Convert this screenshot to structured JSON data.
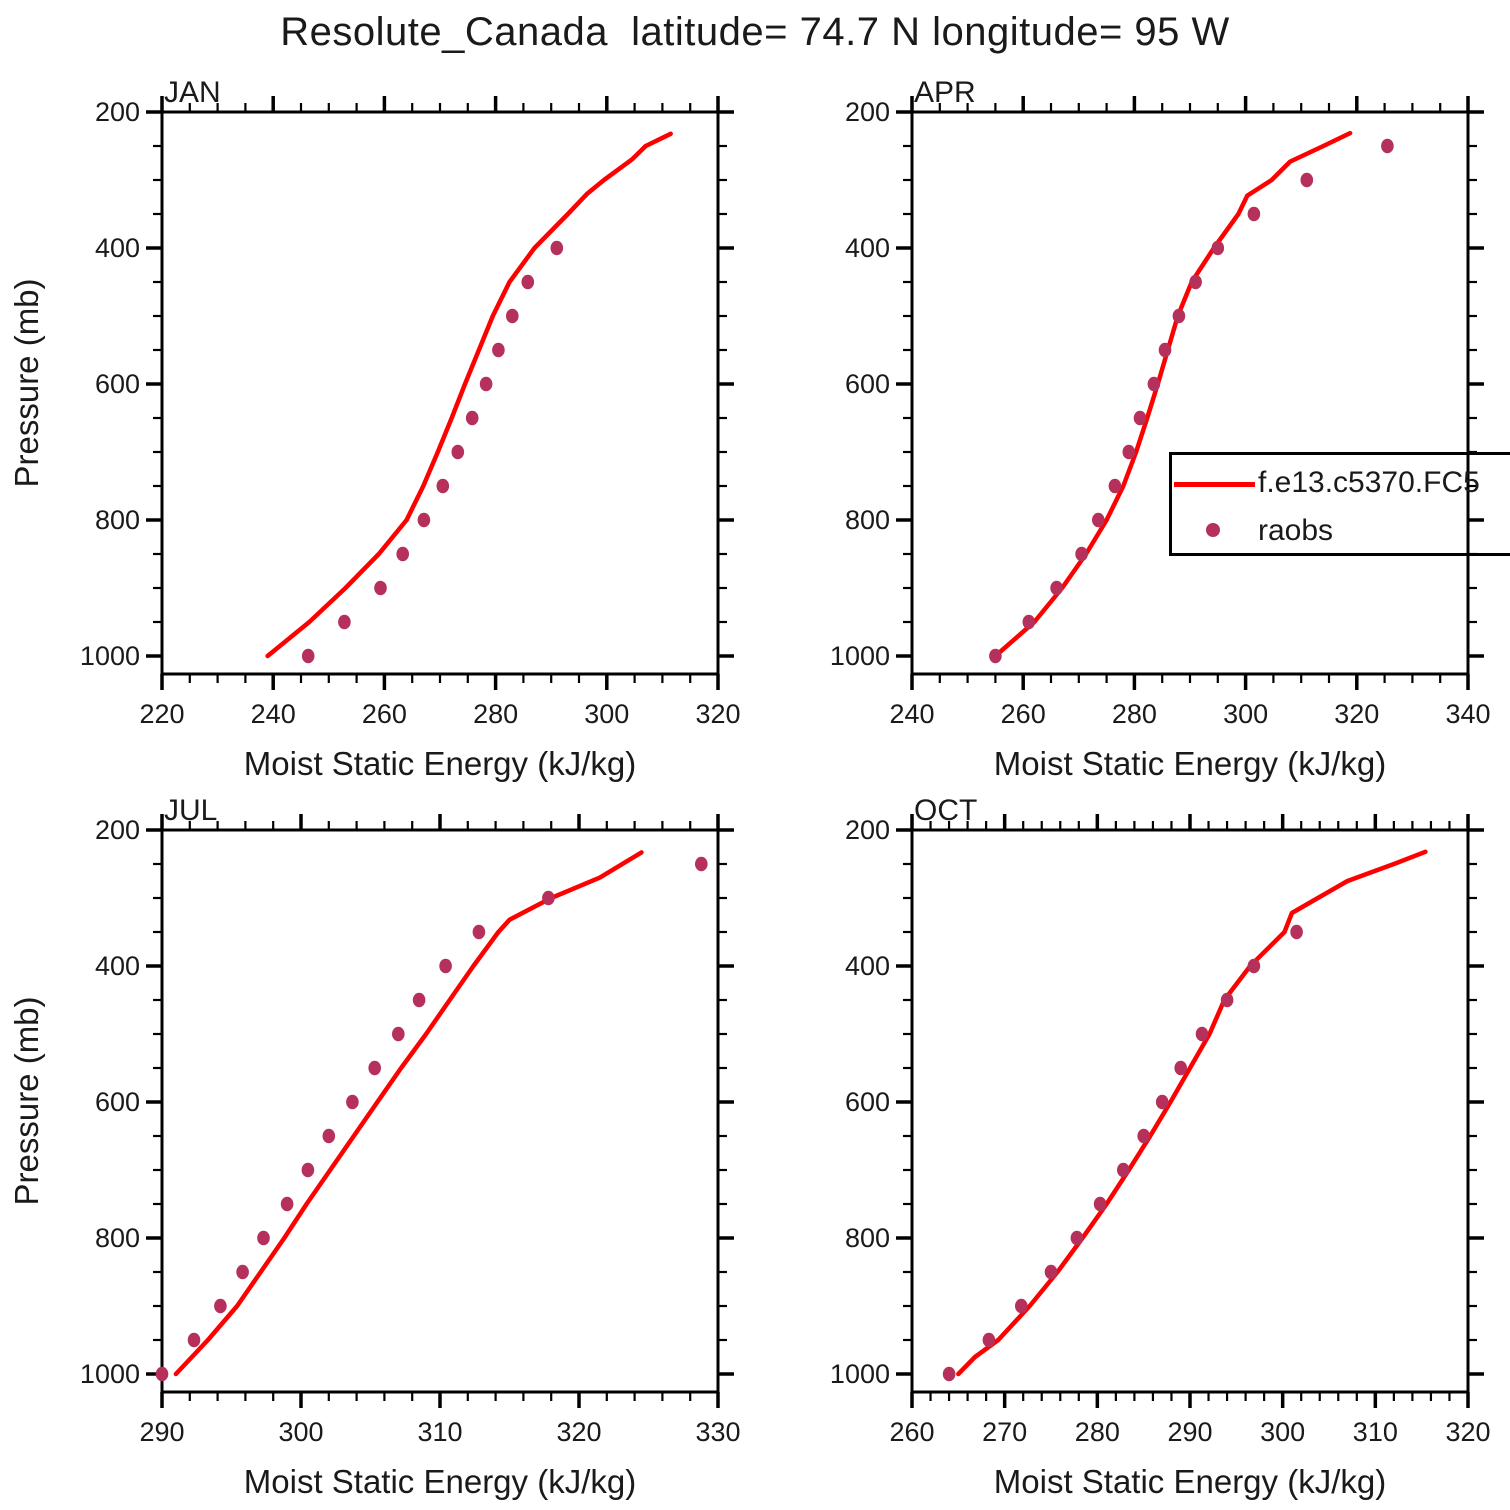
{
  "title": "Resolute_Canada  latitude= 74.7 N longitude= 95 W",
  "legend": {
    "model_label": "f.e13.c5370.FC5",
    "raobs_label": "raobs"
  },
  "colors": {
    "model_line": "#ff0000",
    "raobs_dot": "#b5305a",
    "axis": "#000000",
    "text": "#1a1a1a"
  },
  "chart_data": {
    "type": "line",
    "xlabel": "Moist Static Energy (kJ/kg)",
    "ylabel": "Pressure (mb)",
    "y_axis": {
      "min": 200,
      "max": 1000,
      "tick_major": 200,
      "tick_minor": 50,
      "inverted": true,
      "ticks": [
        200,
        400,
        600,
        800,
        1000
      ]
    },
    "series_names": [
      "f.e13.c5370.FC5",
      "raobs"
    ],
    "legend_position": "inside-top-right-of-APR-panel",
    "grid": false,
    "panels": [
      {
        "month": "JAN",
        "x_axis": {
          "min": 220,
          "max": 320,
          "tick_major": 20,
          "tick_minor": 5,
          "ticks": [
            220,
            240,
            260,
            280,
            300,
            320
          ]
        },
        "model": {
          "pressure": [
            1000,
            950,
            900,
            850,
            800,
            750,
            700,
            650,
            600,
            550,
            500,
            450,
            400,
            350,
            320,
            300,
            270,
            250,
            232
          ],
          "mse": [
            239,
            246.5,
            253,
            259,
            264,
            267,
            269.6,
            272.1,
            274.5,
            277,
            279.5,
            282.5,
            287,
            293,
            296.5,
            299.5,
            304.5,
            307,
            311.5
          ]
        },
        "raobs": {
          "pressure": [
            1000,
            950,
            900,
            850,
            800,
            750,
            700,
            650,
            600,
            550,
            500,
            450,
            400
          ],
          "mse": [
            246.3,
            252.8,
            259.3,
            263.3,
            267.1,
            270.5,
            273.2,
            275.8,
            278.3,
            280.5,
            283,
            285.8,
            291
          ]
        }
      },
      {
        "month": "APR",
        "x_axis": {
          "min": 240,
          "max": 340,
          "tick_major": 20,
          "tick_minor": 5,
          "ticks": [
            240,
            260,
            280,
            300,
            320,
            340
          ]
        },
        "model": {
          "pressure": [
            1000,
            950,
            900,
            850,
            800,
            750,
            700,
            650,
            600,
            550,
            500,
            450,
            400,
            350,
            323,
            300,
            273,
            250,
            231
          ],
          "mse": [
            255,
            262,
            267,
            271.3,
            275,
            278,
            280.3,
            282.3,
            284.2,
            286,
            287.8,
            290.3,
            294.3,
            298.7,
            300.3,
            304.7,
            308,
            314,
            318.8
          ]
        },
        "raobs": {
          "pressure": [
            1000,
            950,
            900,
            850,
            800,
            750,
            700,
            650,
            600,
            550,
            500,
            450,
            400,
            350,
            300,
            250
          ],
          "mse": [
            255,
            261,
            266,
            270.5,
            273.5,
            276.5,
            279,
            281,
            283.5,
            285.5,
            288,
            291,
            295,
            301.5,
            311,
            325.5
          ]
        }
      },
      {
        "month": "JUL",
        "x_axis": {
          "min": 290,
          "max": 330,
          "tick_major": 10,
          "tick_minor": 2,
          "ticks": [
            290,
            300,
            310,
            320,
            330
          ]
        },
        "model": {
          "pressure": [
            1000,
            950,
            900,
            850,
            800,
            750,
            700,
            650,
            600,
            550,
            500,
            450,
            400,
            350,
            332,
            300,
            270,
            233
          ],
          "mse": [
            291,
            293.3,
            295.4,
            297.1,
            298.8,
            300.4,
            302.1,
            303.8,
            305.5,
            307.2,
            309,
            310.7,
            312.4,
            314.2,
            315,
            318,
            321.5,
            324.5
          ]
        },
        "raobs": {
          "pressure": [
            1000,
            950,
            900,
            850,
            800,
            750,
            700,
            650,
            600,
            550,
            500,
            450,
            400,
            350,
            300,
            250
          ],
          "mse": [
            290,
            292.3,
            294.2,
            295.8,
            297.3,
            299,
            300.5,
            302,
            303.7,
            305.3,
            307,
            308.5,
            310.4,
            312.8,
            317.8,
            328.8
          ]
        }
      },
      {
        "month": "OCT",
        "x_axis": {
          "min": 260,
          "max": 320,
          "tick_major": 10,
          "tick_minor": 2,
          "ticks": [
            260,
            270,
            280,
            290,
            300,
            310,
            320
          ]
        },
        "model": {
          "pressure": [
            1000,
            975,
            950,
            900,
            850,
            800,
            750,
            700,
            650,
            600,
            550,
            500,
            450,
            400,
            350,
            322,
            300,
            275,
            250,
            232
          ],
          "mse": [
            265,
            266.8,
            269.3,
            272.7,
            275.7,
            278.4,
            281,
            283.4,
            285.7,
            287.9,
            290,
            292.1,
            293.7,
            296.5,
            300.2,
            301,
            303.8,
            307,
            312,
            315.4
          ]
        },
        "raobs": {
          "pressure": [
            1000,
            950,
            900,
            850,
            800,
            750,
            700,
            650,
            600,
            550,
            500,
            450,
            400,
            350
          ],
          "mse": [
            264,
            268.3,
            271.8,
            275,
            277.8,
            280.3,
            282.8,
            285,
            287,
            289,
            291.3,
            294,
            296.9,
            301.5
          ]
        }
      }
    ]
  }
}
